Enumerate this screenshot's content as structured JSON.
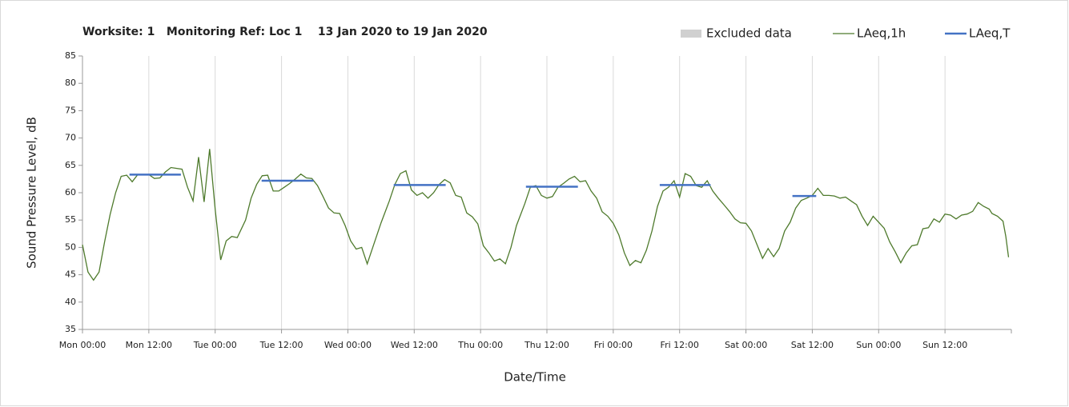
{
  "chart_data": {
    "type": "line",
    "title": "Worksite: 1   Monitoring Ref: Loc 1    13 Jan 2020 to 19 Jan 2020",
    "ylabel": "Sound Pressure Level, dB",
    "xlabel": "Date/Time",
    "xlim": [
      0,
      168
    ],
    "xticks": [
      {
        "value": 0,
        "label": "Mon 00:00"
      },
      {
        "value": 12,
        "label": "Mon 12:00"
      },
      {
        "value": 24,
        "label": "Tue 00:00"
      },
      {
        "value": 36,
        "label": "Tue 12:00"
      },
      {
        "value": 48,
        "label": "Wed 00:00"
      },
      {
        "value": 60,
        "label": "Wed 12:00"
      },
      {
        "value": 72,
        "label": "Thu 00:00"
      },
      {
        "value": 84,
        "label": "Thu 12:00"
      },
      {
        "value": 96,
        "label": "Fri 00:00"
      },
      {
        "value": 108,
        "label": "Fri 12:00"
      },
      {
        "value": 120,
        "label": "Sat 00:00"
      },
      {
        "value": 132,
        "label": "Sat 12:00"
      },
      {
        "value": 144,
        "label": "Sun 00:00"
      },
      {
        "value": 156,
        "label": "Sun 12:00"
      }
    ],
    "ylim": [
      35,
      85
    ],
    "yticks": [
      35,
      40,
      45,
      50,
      55,
      60,
      65,
      70,
      75,
      80,
      85
    ],
    "grid": "x",
    "legend": "top-right",
    "series": [
      {
        "name": "Excluded data",
        "color": "#d0d0d0",
        "x": [],
        "values": []
      },
      {
        "name": "LAeq,1h",
        "color": "#4e7a2c",
        "x": [
          0,
          1,
          2,
          3,
          4,
          5,
          6,
          7,
          8,
          9,
          10,
          11,
          12,
          13,
          14,
          15,
          16,
          18,
          19,
          20,
          21,
          22,
          23,
          24,
          25,
          26,
          27,
          28,
          29.5,
          30.5,
          31.5,
          32.5,
          33.5,
          34.5,
          35.5,
          36.5,
          37.5,
          38.5,
          39.5,
          40.5,
          41.5,
          42.5,
          43.5,
          44.5,
          45.5,
          46.5,
          47.5,
          48.5,
          49.5,
          50.5,
          51.5,
          52.5,
          54,
          55.5,
          56.5,
          57.5,
          58.5,
          59.5,
          60.5,
          61.5,
          62.5,
          63.5,
          64.5,
          65.5,
          66.5,
          67.5,
          68.5,
          69.5,
          70.5,
          71.5,
          72.5,
          73.5,
          74.5,
          75.5,
          76.5,
          77.5,
          78.5,
          80,
          81,
          82,
          83,
          84,
          85,
          86,
          87,
          88,
          89,
          90,
          91,
          92,
          93,
          94,
          95,
          96,
          97,
          98,
          99,
          100,
          101,
          102,
          103,
          104,
          105,
          106,
          107,
          108,
          109,
          110,
          111,
          112,
          113,
          114,
          115,
          116,
          117,
          118,
          119,
          120,
          121,
          122,
          123,
          124,
          125,
          126,
          127,
          128,
          129,
          130,
          131,
          132,
          133,
          134,
          135,
          136,
          137,
          138,
          139,
          140,
          141,
          142,
          143,
          144,
          145,
          146,
          147,
          148,
          149,
          150,
          151,
          152,
          153,
          154,
          155,
          156,
          157,
          158,
          159,
          160,
          161,
          162,
          163,
          164,
          164.5,
          165.5,
          166.5,
          167,
          167.5
        ],
        "values": [
          50.5,
          45.5,
          44,
          45.5,
          51,
          56,
          60,
          63,
          63.2,
          62,
          63.3,
          63.3,
          63.3,
          62.6,
          62.7,
          63.8,
          64.6,
          64.3,
          61,
          58.5,
          66.5,
          58.3,
          68,
          57,
          47.7,
          51.2,
          52,
          51.8,
          55,
          59,
          61.5,
          63.1,
          63.2,
          60.3,
          60.3,
          61,
          61.7,
          62.5,
          63.4,
          62.7,
          62.6,
          61.3,
          59.3,
          57.2,
          56.3,
          56.2,
          54,
          51.2,
          49.7,
          50,
          47,
          50,
          54.5,
          58.5,
          61.5,
          63.5,
          64,
          60.5,
          59.5,
          60,
          59,
          60,
          61.5,
          62.4,
          61.8,
          59.5,
          59.2,
          56.3,
          55.6,
          54.3,
          50.3,
          49,
          47.5,
          47.9,
          47,
          50,
          54,
          58,
          61,
          61.3,
          59.5,
          59,
          59.3,
          61,
          61.7,
          62.5,
          63,
          62,
          62.2,
          60.3,
          59,
          56.5,
          55.7,
          54.4,
          52.3,
          49,
          46.7,
          47.6,
          47.2,
          49.5,
          53,
          57.5,
          60.3,
          61,
          62.2,
          59.2,
          63.5,
          63,
          61.3,
          61,
          62.2,
          60.3,
          59,
          57.8,
          56.6,
          55.2,
          54.5,
          54.4,
          53,
          50.5,
          48,
          49.8,
          48.3,
          49.8,
          53,
          54.6,
          57.2,
          58.6,
          59,
          59.5,
          60.8,
          59.5,
          59.5,
          59.4,
          59,
          59.2,
          58.5,
          57.8,
          55.7,
          54,
          55.7,
          54.6,
          53.5,
          51,
          49.2,
          47.2,
          49,
          50.3,
          50.5,
          53.4,
          53.6,
          55.2,
          54.6,
          56.1,
          55.9,
          55.2,
          55.9,
          56.1,
          56.6,
          58.2,
          57.5,
          57,
          56.2,
          55.7,
          54.8,
          52,
          48.2
        ]
      },
      {
        "name": "LAeq,T",
        "color": "#4472c4",
        "x": [
          8.5,
          17.8,
          25,
          32.4,
          41.8,
          49,
          56.3,
          65.7,
          73,
          80.2,
          89.6,
          97,
          104.4,
          113.6,
          121,
          128.4,
          132.7
        ],
        "values": [
          63.3,
          63.3,
          null,
          62.2,
          62.2,
          null,
          61.4,
          61.4,
          null,
          61.1,
          61.1,
          null,
          61.4,
          61.4,
          null,
          59.4,
          59.4
        ]
      }
    ]
  }
}
